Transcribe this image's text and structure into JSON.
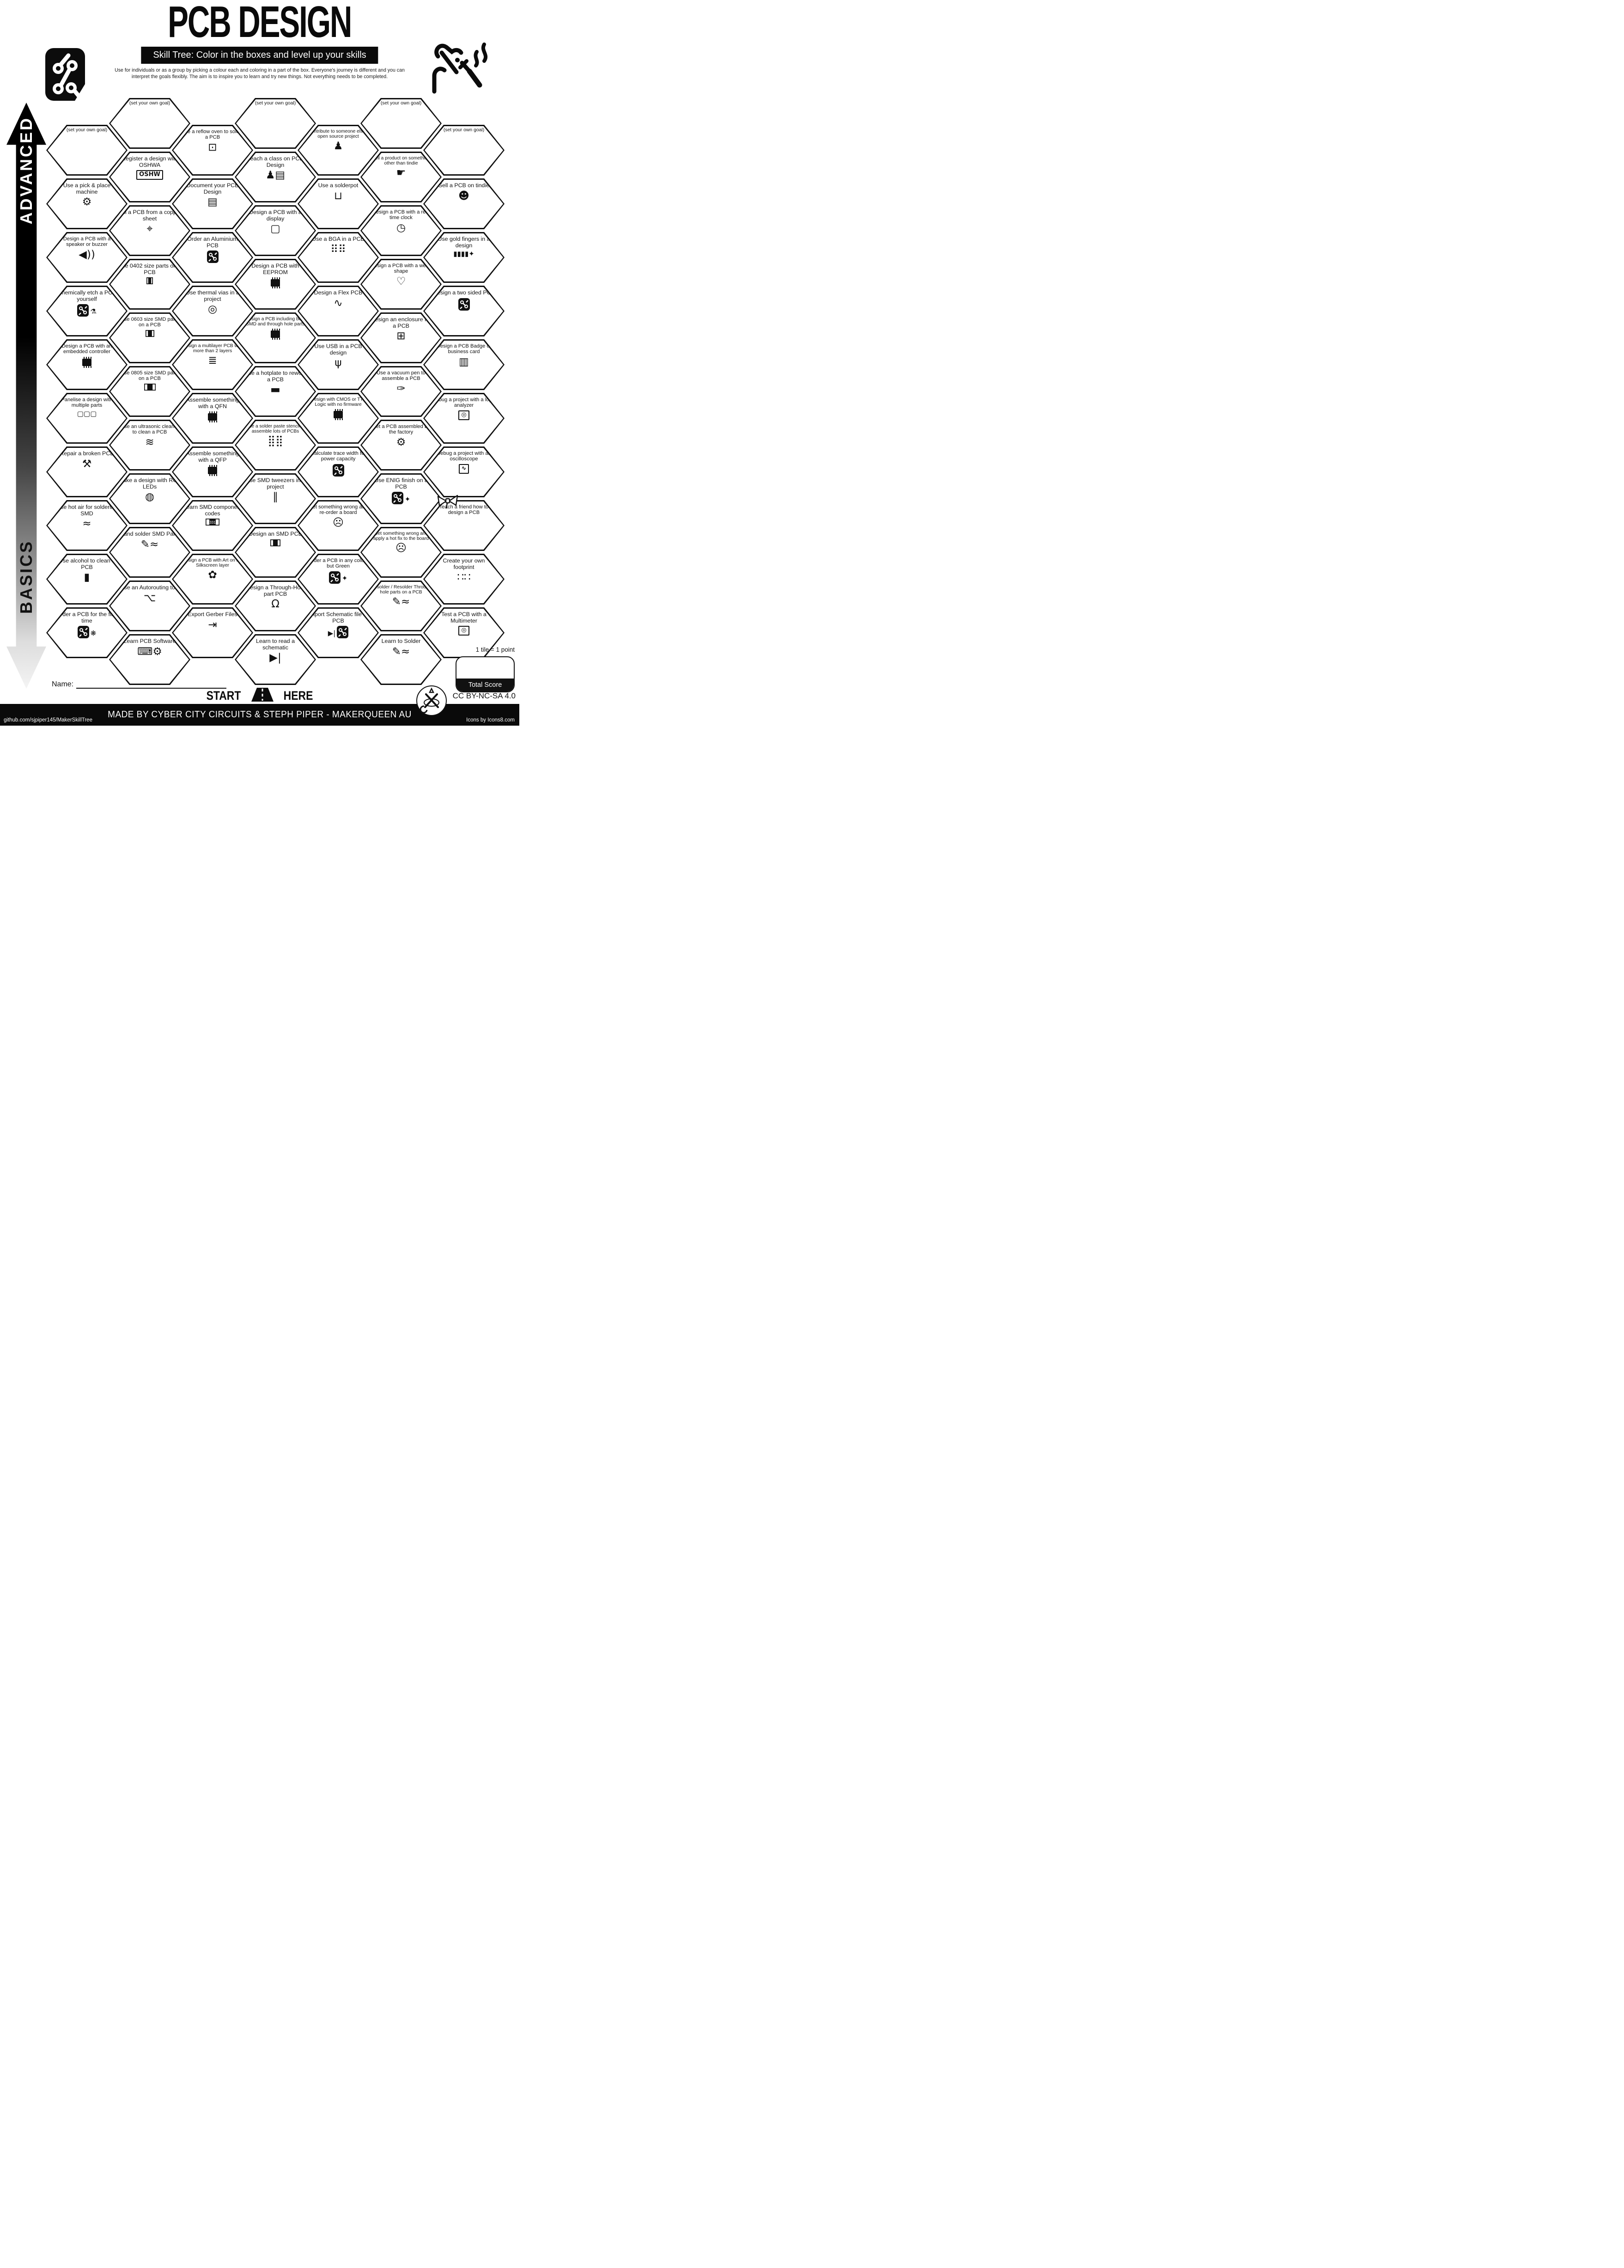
{
  "header": {
    "title": "PCB DESIGN",
    "banner": "Skill Tree:  Color in the boxes and level up your skills",
    "instructions_line1": "Use for individuals or as a group by picking a colour each and coloring in a part of the box.  Everyone's journey is different and you can",
    "instructions_line2": "interpret the goals flexibly.  The aim is to inspire you to learn and try new things. Not everything needs to be completed."
  },
  "axis": {
    "advanced": "ADVANCED",
    "basics": "BASICS"
  },
  "start": {
    "start_word": "START",
    "here_word": "HERE"
  },
  "name_label": "Name:",
  "score": {
    "tile_note": "1 tile = 1 point",
    "total_label": "Total Score"
  },
  "license": "CC BY-NC-SA 4.0",
  "footer": {
    "left": "github.com/sjpiper145/MakerSkillTree",
    "center": "MADE BY CYBER CITY CIRCUITS & STEPH PIPER  -  MAKERQUEEN AU",
    "right": "Icons by Icons8.com"
  },
  "colors": {
    "ink": "#111111",
    "paper": "#ffffff"
  },
  "hexes": [
    {
      "col": 1,
      "row": 0,
      "label": "(set your own goal)",
      "goal": true
    },
    {
      "col": 1,
      "row": 1,
      "label": "Use a pick & place machine",
      "icon": {
        "n": "robot-arm-icon",
        "t": "glyph",
        "g": "⚙"
      }
    },
    {
      "col": 1,
      "row": 2,
      "label": "Design a PCB with a speaker or buzzer",
      "icon": {
        "n": "speaker-icon",
        "t": "glyph",
        "g": "◀))"
      }
    },
    {
      "col": 1,
      "row": 3,
      "label": "Chemically etch a PCB yourself",
      "icon": {
        "n": "pcb-flask-icon",
        "t": "pcb",
        "x": "⚗"
      }
    },
    {
      "col": 1,
      "row": 4,
      "label": "Design a PCB with an embedded controller",
      "icon": {
        "n": "microcontroller-icon",
        "t": "chip"
      }
    },
    {
      "col": 1,
      "row": 5,
      "label": "Panelise a design with multiple parts",
      "icon": {
        "n": "panel-icon",
        "t": "glyph",
        "g": "▢▢▢",
        "small": true
      }
    },
    {
      "col": 1,
      "row": 6,
      "label": "Repair a broken PCB",
      "icon": {
        "n": "tools-icon",
        "t": "glyph",
        "g": "⚒"
      }
    },
    {
      "col": 1,
      "row": 7,
      "label": "Use hot air for soldering SMD",
      "icon": {
        "n": "hot-air-gun-icon",
        "t": "glyph",
        "g": "≈"
      }
    },
    {
      "col": 1,
      "row": 8,
      "label": "Use alcohol to clean a PCB",
      "icon": {
        "n": "bottle-icon",
        "t": "glyph",
        "g": "▮"
      }
    },
    {
      "col": 1,
      "row": 9,
      "label": "Order a PCB for the first time",
      "icon": {
        "n": "pcb-party-icon",
        "t": "pcb",
        "x": "❋"
      }
    },
    {
      "col": 2,
      "row": 0,
      "label": "(set your own goal)",
      "goal": true
    },
    {
      "col": 2,
      "row": 1,
      "label": "Register a design with OSHWA",
      "icon": {
        "n": "oshw-logo",
        "t": "boxed",
        "g": "OSHW"
      }
    },
    {
      "col": 2,
      "row": 2,
      "label": "Mill a PCB from a copper sheet",
      "icon": {
        "n": "mill-icon",
        "t": "glyph",
        "g": "⌖"
      }
    },
    {
      "col": 2,
      "row": 3,
      "label": "Use 0402 size parts on a PCB",
      "icon": {
        "n": "smd-0402-icon",
        "t": "smd",
        "w": 14
      }
    },
    {
      "col": 2,
      "row": 4,
      "label": "Use 0603 size SMD parts on a PCB",
      "icon": {
        "n": "smd-0603-icon",
        "t": "smd",
        "w": 19
      }
    },
    {
      "col": 2,
      "row": 5,
      "label": "Use 0805 size SMD parts on a PCB",
      "icon": {
        "n": "smd-0805-icon",
        "t": "smd",
        "w": 25
      }
    },
    {
      "col": 2,
      "row": 6,
      "label": "Use an ultrasonic cleaner to clean a PCB",
      "icon": {
        "n": "ultrasonic-waves-icon",
        "t": "glyph",
        "g": "≋"
      }
    },
    {
      "col": 2,
      "row": 7,
      "label": "Make a design with RGB LEDs",
      "icon": {
        "n": "led-icon",
        "t": "glyph",
        "g": "◍"
      }
    },
    {
      "col": 2,
      "row": 8,
      "label": "Hand solder SMD Parts",
      "icon": {
        "n": "soldering-iron-icon",
        "t": "glyph",
        "g": "✎≈"
      }
    },
    {
      "col": 2,
      "row": 9,
      "label": "Use an Autorouting tool",
      "icon": {
        "n": "autoroute-traces-icon",
        "t": "glyph",
        "g": "⌥"
      }
    },
    {
      "col": 2,
      "row": 10,
      "label": "Learn PCB Software",
      "icon": {
        "n": "laptop-gear-icon",
        "t": "glyph",
        "g": "⌨⚙"
      }
    },
    {
      "col": 3,
      "row": 0,
      "label": "Use a reflow oven to solder a PCB",
      "icon": {
        "n": "reflow-oven-icon",
        "t": "glyph",
        "g": "⊡"
      }
    },
    {
      "col": 3,
      "row": 1,
      "label": "Document your PCB Design",
      "icon": {
        "n": "document-icon",
        "t": "glyph",
        "g": "▤"
      }
    },
    {
      "col": 3,
      "row": 2,
      "label": "Order an Aluminium PCB",
      "icon": {
        "n": "pcb-icon",
        "t": "pcb"
      }
    },
    {
      "col": 3,
      "row": 3,
      "label": "Use thermal vias in a project",
      "icon": {
        "n": "via-icon",
        "t": "glyph",
        "g": "◎"
      }
    },
    {
      "col": 3,
      "row": 4,
      "label": "Design a multilayer PCB with more than 2 layers",
      "icon": {
        "n": "layers-icon",
        "t": "glyph",
        "g": "≣"
      }
    },
    {
      "col": 3,
      "row": 5,
      "label": "Assemble something  with a QFN",
      "icon": {
        "n": "qfn-chip-icon",
        "t": "chip"
      }
    },
    {
      "col": 3,
      "row": 6,
      "label": "Assemble something  with a QFP",
      "icon": {
        "n": "qfp-chip-icon",
        "t": "chip"
      }
    },
    {
      "col": 3,
      "row": 7,
      "label": "Learn SMD component codes",
      "icon": {
        "n": "smd-code-icon",
        "t": "smd",
        "w": 30,
        "g": "331"
      }
    },
    {
      "col": 3,
      "row": 8,
      "label": "Design a PCB with Art on the Silkscreen layer",
      "icon": {
        "n": "palette-icon",
        "t": "glyph",
        "g": "✿"
      }
    },
    {
      "col": 3,
      "row": 9,
      "label": "Export Gerber Files",
      "icon": {
        "n": "export-icon",
        "t": "glyph",
        "g": "⇥"
      }
    },
    {
      "col": 4,
      "row": 0,
      "label": "(set your own goal)",
      "goal": true
    },
    {
      "col": 4,
      "row": 1,
      "label": "Teach a class on PCB Design",
      "icon": {
        "n": "teacher-icon",
        "t": "glyph",
        "g": "♟▤"
      }
    },
    {
      "col": 4,
      "row": 2,
      "label": "Design a PCB with a display",
      "icon": {
        "n": "display-icon",
        "t": "glyph",
        "g": "▢"
      }
    },
    {
      "col": 4,
      "row": 3,
      "label": "Design a PCB with EEPROM",
      "icon": {
        "n": "eeprom-chip-icon",
        "t": "chip"
      }
    },
    {
      "col": 4,
      "row": 4,
      "label": "Design a PCB including both SMD and through hole parts",
      "icon": {
        "n": "smd-th-parts-icon",
        "t": "chip"
      }
    },
    {
      "col": 4,
      "row": 5,
      "label": "Use a hotplate to rework a PCB",
      "icon": {
        "n": "hotplate-icon",
        "t": "glyph",
        "g": "▬"
      }
    },
    {
      "col": 4,
      "row": 6,
      "label": "Use a solder paste stencil to assemble lots of PCBs",
      "icon": {
        "n": "stencil-icon",
        "t": "glyph",
        "g": "⣿⣿"
      }
    },
    {
      "col": 4,
      "row": 7,
      "label": "Use SMD tweezers in a project",
      "icon": {
        "n": "tweezers-icon",
        "t": "glyph",
        "g": "∥"
      }
    },
    {
      "col": 4,
      "row": 8,
      "label": "Design an SMD PCB",
      "icon": {
        "n": "smd-part-icon",
        "t": "smd",
        "w": 22
      }
    },
    {
      "col": 4,
      "row": 9,
      "label": "Design a Through-Hole part PCB",
      "icon": {
        "n": "through-hole-led-icon",
        "t": "glyph",
        "g": "Ω"
      }
    },
    {
      "col": 4,
      "row": 10,
      "label": "Learn to read a schematic",
      "icon": {
        "n": "diode-symbol-icon",
        "t": "glyph",
        "g": "▶|"
      }
    },
    {
      "col": 5,
      "row": 0,
      "label": "Contribute to someone else's open source project",
      "icon": {
        "n": "person-laptop-icon",
        "t": "glyph",
        "g": "♟"
      }
    },
    {
      "col": 5,
      "row": 1,
      "label": "Use a solderpot",
      "icon": {
        "n": "solderpot-icon",
        "t": "glyph",
        "g": "⊔"
      }
    },
    {
      "col": 5,
      "row": 2,
      "label": "Use a BGA in a PCB",
      "icon": {
        "n": "bga-grid-icon",
        "t": "glyph",
        "g": "⠿⠿"
      }
    },
    {
      "col": 5,
      "row": 3,
      "label": "Design a Flex PCB",
      "icon": {
        "n": "flex-pcb-icon",
        "t": "glyph",
        "g": "∿"
      }
    },
    {
      "col": 5,
      "row": 4,
      "label": "Use USB in a PCB design",
      "icon": {
        "n": "usb-icon",
        "t": "glyph",
        "g": "ψ"
      }
    },
    {
      "col": 5,
      "row": 5,
      "label": "Design with CMOS or TTL Logic with no firmware",
      "icon": {
        "n": "logic-chip-icon",
        "t": "chip"
      }
    },
    {
      "col": 5,
      "row": 6,
      "label": "Calculate trace width for power capacity",
      "icon": {
        "n": "pcb-icon",
        "t": "pcb"
      }
    },
    {
      "col": 5,
      "row": 7,
      "label": "Get something wrong and re-order a board",
      "icon": {
        "n": "facepalm-icon",
        "t": "glyph",
        "g": "☹"
      }
    },
    {
      "col": 5,
      "row": 8,
      "label": "Order a PCB in any colour but Green",
      "icon": {
        "n": "pcb-sparkle-icon",
        "t": "pcb",
        "x": "✦"
      }
    },
    {
      "col": 5,
      "row": 9,
      "label": "Import Schematic file to PCB",
      "icon": {
        "n": "schematic-to-pcb-icon",
        "t": "pcb",
        "pre": "▶|"
      }
    },
    {
      "col": 6,
      "row": 0,
      "label": "(set your own goal)",
      "goal": true
    },
    {
      "col": 6,
      "row": 1,
      "label": "Sell a product on something other than tindie",
      "icon": {
        "n": "hand-box-icon",
        "t": "glyph",
        "g": "☛"
      }
    },
    {
      "col": 6,
      "row": 2,
      "label": "Design a PCB with a real time clock",
      "icon": {
        "n": "clock-icon",
        "t": "glyph",
        "g": "◷"
      }
    },
    {
      "col": 6,
      "row": 3,
      "label": "Design a PCB with a weird shape",
      "icon": {
        "n": "heart-shape-icon",
        "t": "glyph",
        "g": "♡"
      }
    },
    {
      "col": 6,
      "row": 4,
      "label": "Design an enclosure for a PCB",
      "icon": {
        "n": "enclosure-icon",
        "t": "glyph",
        "g": "⊞"
      }
    },
    {
      "col": 6,
      "row": 5,
      "label": "Use a vacuum pen to assemble a PCB",
      "icon": {
        "n": "vacuum-pen-icon",
        "t": "glyph",
        "g": "✑"
      }
    },
    {
      "col": 6,
      "row": 6,
      "label": "Get a PCB assembled by the factory",
      "icon": {
        "n": "robot-arm-icon",
        "t": "glyph",
        "g": "⚙"
      }
    },
    {
      "col": 6,
      "row": 7,
      "label": "Use ENIG finish on a PCB",
      "icon": {
        "n": "pcb-sparkle-icon",
        "t": "pcb",
        "x": "✦"
      }
    },
    {
      "col": 6,
      "row": 8,
      "label": "Get something wrong and apply a hot fix to the board",
      "icon": {
        "n": "facepalm-icon",
        "t": "glyph",
        "g": "☹"
      }
    },
    {
      "col": 6,
      "row": 9,
      "label": "Desolder / Resolder Through hole parts on a PCB",
      "icon": {
        "n": "soldering-iron-icon",
        "t": "glyph",
        "g": "✎≈"
      }
    },
    {
      "col": 6,
      "row": 10,
      "label": "Learn to Solder",
      "icon": {
        "n": "soldering-iron-icon",
        "t": "glyph",
        "g": "✎≈"
      }
    },
    {
      "col": 7,
      "row": 0,
      "label": "(set your own goal)",
      "goal": true
    },
    {
      "col": 7,
      "row": 1,
      "label": "Sell a PCB on tindie",
      "icon": {
        "n": "tindie-dog-icon",
        "t": "glyph",
        "g": "☻"
      }
    },
    {
      "col": 7,
      "row": 2,
      "label": "Use gold fingers in a design",
      "icon": {
        "n": "gold-fingers-icon",
        "t": "glyph",
        "g": "▮▮▮▮✦",
        "small": true
      }
    },
    {
      "col": 7,
      "row": 3,
      "label": "Design a two sided PCB",
      "icon": {
        "n": "pcb-icon",
        "t": "pcb"
      }
    },
    {
      "col": 7,
      "row": 4,
      "label": "Design a PCB Badge or business card",
      "icon": {
        "n": "badge-icon",
        "t": "glyph",
        "g": "▥"
      }
    },
    {
      "col": 7,
      "row": 5,
      "label": "Debug a project with a logic analyzer",
      "icon": {
        "n": "multimeter-icon",
        "t": "boxed",
        "g": "◎"
      }
    },
    {
      "col": 7,
      "row": 6,
      "label": "Debug a project with an oscilloscope",
      "icon": {
        "n": "oscilloscope-icon",
        "t": "boxed",
        "g": "∿"
      }
    },
    {
      "col": 7,
      "row": 7,
      "label": "Teach a friend how to design a PCB",
      "bow": true
    },
    {
      "col": 7,
      "row": 8,
      "label": "Create your own footprint",
      "icon": {
        "n": "footprint-pads-icon",
        "t": "glyph",
        "g": "∷∷"
      }
    },
    {
      "col": 7,
      "row": 9,
      "label": "Test a PCB with a Multimeter",
      "icon": {
        "n": "multimeter-icon",
        "t": "boxed",
        "g": "◎"
      }
    }
  ]
}
